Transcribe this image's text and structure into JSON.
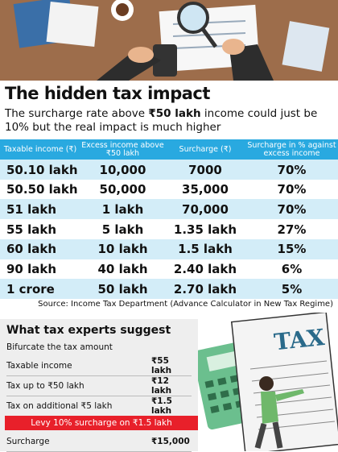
{
  "header": {
    "title": "The hidden tax impact",
    "subtitle": [
      "The surcharge rate above ",
      "₹50 lakh",
      " income could just be 10% but the real impact is much higher"
    ]
  },
  "table": {
    "columns": [
      "Taxable income (₹)",
      "Excess income above ₹50 lakh",
      "Surcharge (₹)",
      "Surcharge in % against excess income"
    ],
    "rows": [
      [
        "50.10 lakh",
        "10,000",
        "7000",
        "70%"
      ],
      [
        "50.50 lakh",
        "50,000",
        "35,000",
        "70%"
      ],
      [
        "51 lakh",
        "1 lakh",
        "70,000",
        "70%"
      ],
      [
        "55 lakh",
        "5 lakh",
        "1.35 lakh",
        "27%"
      ],
      [
        "60 lakh",
        "10 lakh",
        "1.5 lakh",
        "15%"
      ],
      [
        "90 lakh",
        "40 lakh",
        "2.40 lakh",
        "6%"
      ],
      [
        "1 crore",
        "50 lakh",
        "2.70 lakh",
        "5%"
      ]
    ],
    "source": "Source: Income Tax Department (Advance Calculator in New Tax Regime)"
  },
  "suggestions": {
    "title": "What tax experts suggest",
    "subtitle": "Bifurcate the tax amount",
    "rows": [
      [
        "Taxable income",
        "₹55 lakh"
      ],
      [
        "Tax up to ₹50 lakh",
        "₹12 lakh"
      ],
      [
        "Tax on additional ₹5 lakh",
        "₹1.5 lakh"
      ]
    ],
    "highlight": "Levy 10% surcharge on ₹1.5 lakh",
    "final_row": [
      "Surcharge",
      "₹15,000"
    ]
  }
}
